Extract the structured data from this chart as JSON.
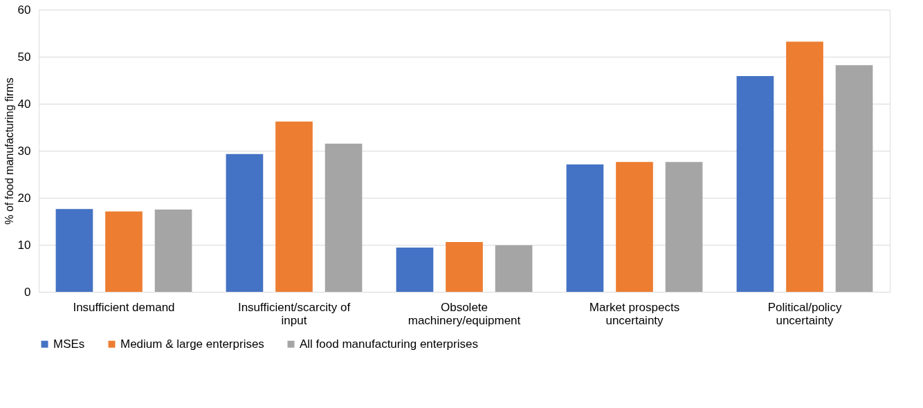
{
  "chart_data": {
    "type": "bar",
    "ylabel": "% of food manufacturing firms",
    "categories": [
      "Insufficient demand",
      "Insufficient/scarcity of input",
      "Obsolete machinery/equipment",
      "Market prospects uncertainty",
      "Political/policy uncertainty"
    ],
    "series": [
      {
        "name": "MSEs",
        "color": "#4472c4",
        "values": [
          17.6,
          29.3,
          9.4,
          27.1,
          45.9
        ]
      },
      {
        "name": "Medium & large enterprises",
        "color": "#ed7d31",
        "values": [
          17.1,
          36.2,
          10.6,
          27.6,
          53.2
        ]
      },
      {
        "name": "All food manufacturing enterprises",
        "color": "#a5a5a5",
        "values": [
          17.5,
          31.5,
          9.9,
          27.6,
          48.2
        ]
      }
    ],
    "ylim": [
      0,
      60
    ],
    "yticks": [
      0,
      10,
      20,
      30,
      40,
      50,
      60
    ],
    "grid": "y",
    "legend": "bottom"
  }
}
